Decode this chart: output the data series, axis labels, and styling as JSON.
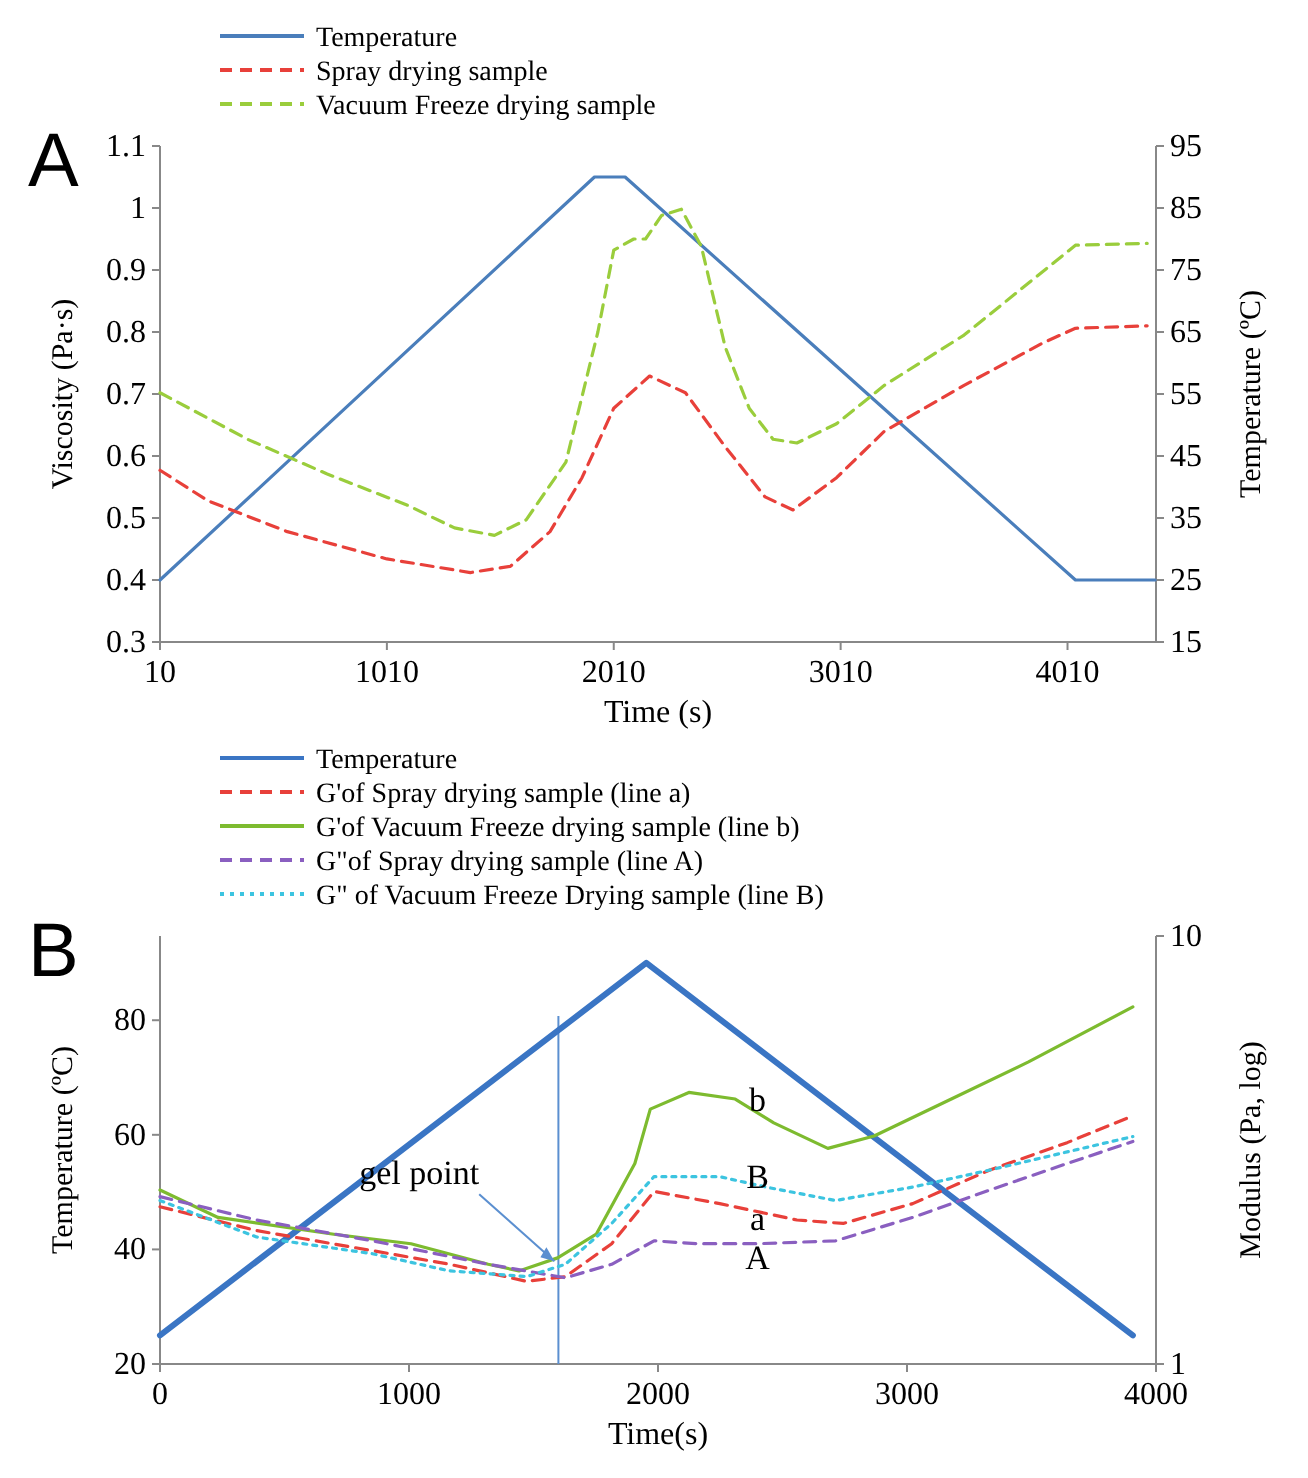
{
  "chart_data": [
    {
      "type": "line",
      "title": "A",
      "xlabel": "Time (s)",
      "ylabel": "Viscosity (Pa·s)",
      "y2label": "Temperature (ºC)",
      "xlim": [
        10,
        4400
      ],
      "xticks": [
        10,
        1010,
        2010,
        3010,
        4010
      ],
      "ylim": [
        0.3,
        1.1
      ],
      "yticks": [
        0.3,
        0.4,
        0.5,
        0.6,
        0.7,
        0.8,
        0.9,
        1,
        1.1
      ],
      "y2lim": [
        15,
        95
      ],
      "y2ticks": [
        15,
        25,
        35,
        45,
        55,
        65,
        75,
        85,
        95
      ],
      "legend": "top left",
      "grid": false,
      "series": [
        {
          "name": "Temperature",
          "color": "#4a7ebb",
          "axis": "y2",
          "line_style": "solid",
          "x": [
            10,
            1925,
            2060,
            4045,
            4396
          ],
          "values": [
            25,
            90,
            90,
            25,
            25
          ]
        },
        {
          "name": "Spray drying sample",
          "color": "#e8403a",
          "line_style": "dashed",
          "x": [
            10,
            220,
            571,
            1010,
            1378,
            1554,
            1729,
            1870,
            2010,
            2168,
            2326,
            2501,
            2677,
            2800,
            2992,
            3203,
            3554,
            3905,
            4045,
            4361
          ],
          "values": [
            0.577,
            0.528,
            0.478,
            0.434,
            0.412,
            0.422,
            0.478,
            0.565,
            0.677,
            0.729,
            0.702,
            0.615,
            0.534,
            0.513,
            0.565,
            0.64,
            0.714,
            0.783,
            0.806,
            0.81
          ]
        },
        {
          "name": "Vacuum Freeze drying sample",
          "color": "#9acd3c",
          "line_style": "dashed",
          "x": [
            10,
            396,
            747,
            1098,
            1308,
            1484,
            1624,
            1799,
            1940,
            2010,
            2098,
            2150,
            2221,
            2308,
            2396,
            2501,
            2607,
            2712,
            2817,
            2992,
            3203,
            3554,
            4045,
            4361
          ],
          "values": [
            0.702,
            0.627,
            0.571,
            0.521,
            0.484,
            0.472,
            0.497,
            0.59,
            0.8,
            0.932,
            0.95,
            0.95,
            0.988,
            0.998,
            0.938,
            0.776,
            0.677,
            0.627,
            0.621,
            0.652,
            0.714,
            0.795,
            0.94,
            0.943
          ]
        }
      ]
    },
    {
      "type": "line",
      "title": "B",
      "xlabel": "Time(s)",
      "ylabel": "Temperature (ºC)",
      "y2label": "Modulus (Pa, log)",
      "xlim": [
        0,
        4000
      ],
      "xticks": [
        0,
        1000,
        2000,
        3000,
        4000
      ],
      "ylim": [
        20,
        94.7
      ],
      "yticks": [
        20,
        40,
        60,
        80
      ],
      "y2lim": [
        1,
        10
      ],
      "y2ticks": [
        1,
        10
      ],
      "log": "y2",
      "legend": "top left",
      "grid": false,
      "ref_lines": [
        {
          "axis": "x",
          "value": 1600,
          "color": "#5b8fd0"
        }
      ],
      "annotations": [
        "gel point",
        "b",
        "B",
        "a",
        "A"
      ],
      "series": [
        {
          "name": "Temperature",
          "color": "#3a75c4",
          "line_style": "solid",
          "x": [
            0,
            1953,
            3907
          ],
          "values": [
            25,
            90,
            25
          ]
        },
        {
          "name": "G'of Spray drying sample (line a)",
          "color": "#e8403a",
          "axis": "y2",
          "line_style": "dashed",
          "x": [
            0,
            388,
            853,
            1163,
            1473,
            1628,
            1814,
            1984,
            2248,
            2558,
            2744,
            3023,
            3333,
            3643,
            3907
          ],
          "values": [
            2.33,
            2.05,
            1.84,
            1.71,
            1.56,
            1.6,
            1.91,
            2.53,
            2.37,
            2.17,
            2.13,
            2.37,
            2.84,
            3.29,
            3.8
          ]
        },
        {
          "name": "G'of Vacuum Freeze drying sample (line b)",
          "color": "#7dbb2f",
          "axis": "y2",
          "line_style": "solid",
          "x": [
            0,
            233,
            698,
            1008,
            1318,
            1442,
            1597,
            1752,
            1907,
            1969,
            2124,
            2310,
            2465,
            2682,
            2868,
            3178,
            3488,
            3907
          ],
          "values": [
            2.55,
            2.2,
            2.01,
            1.91,
            1.71,
            1.65,
            1.77,
            2.01,
            2.94,
            3.94,
            4.31,
            4.16,
            3.66,
            3.19,
            3.41,
            4.16,
            5.08,
            6.83
          ]
        },
        {
          "name": "G\"of Spray drying sample (line A)",
          "color": "#8a5fc0",
          "axis": "y2",
          "line_style": "dashed",
          "x": [
            0,
            388,
            853,
            1318,
            1628,
            1814,
            1984,
            2155,
            2403,
            2713,
            3023,
            3333,
            3643,
            3907
          ],
          "values": [
            2.46,
            2.17,
            1.94,
            1.71,
            1.59,
            1.71,
            1.94,
            1.91,
            1.91,
            1.94,
            2.2,
            2.55,
            2.94,
            3.31
          ]
        },
        {
          "name": "G\" of Vacuum Freeze Drying sample (line B)",
          "color": "#3cc4e0",
          "axis": "y2",
          "line_style": "dotted",
          "x": [
            0,
            388,
            853,
            1163,
            1473,
            1628,
            1814,
            1984,
            2248,
            2434,
            2713,
            3023,
            3333,
            3907
          ],
          "values": [
            2.41,
            1.98,
            1.81,
            1.65,
            1.6,
            1.71,
            2.13,
            2.74,
            2.74,
            2.59,
            2.41,
            2.59,
            2.84,
            3.4
          ]
        }
      ]
    }
  ]
}
